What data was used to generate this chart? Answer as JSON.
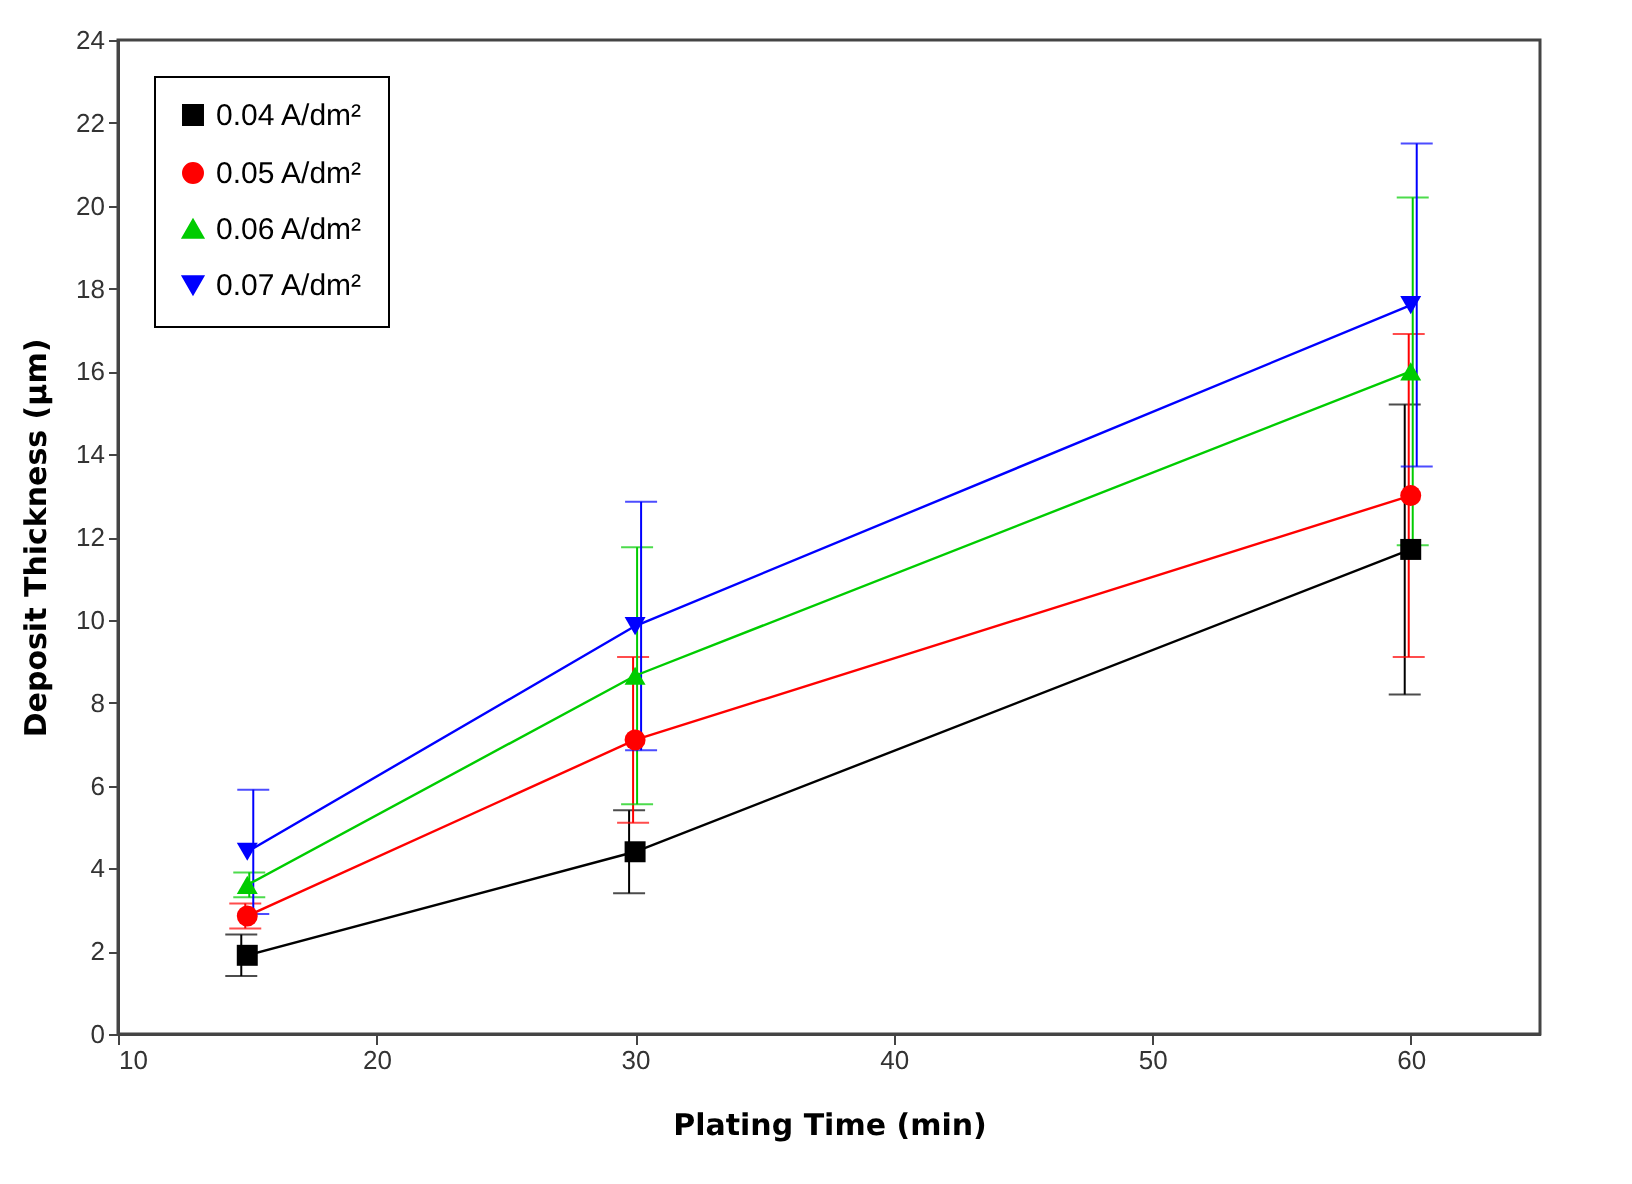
{
  "chart_data": {
    "type": "line",
    "xlabel": "Plating Time (min)",
    "ylabel": "Deposit Thickness (µm)",
    "x": [
      15,
      30,
      60
    ],
    "xlim": [
      10,
      65
    ],
    "xticks": [
      10,
      20,
      30,
      40,
      50,
      60
    ],
    "ylim": [
      0,
      24
    ],
    "yticks": [
      0,
      2,
      4,
      6,
      8,
      10,
      12,
      14,
      16,
      18,
      20,
      22,
      24
    ],
    "grid": false,
    "legend": "top left",
    "series": [
      {
        "name": "0.04 A/dm²",
        "color": "#000000",
        "marker": "square",
        "values": [
          1.9,
          4.4,
          11.7
        ],
        "errors": [
          0.5,
          1.0,
          3.5
        ]
      },
      {
        "name": "0.05 A/dm²",
        "color": "#ff0000",
        "marker": "circle",
        "values": [
          2.85,
          7.1,
          13.0
        ],
        "errors": [
          0.3,
          2.0,
          3.9
        ]
      },
      {
        "name": "0.06 A/dm²",
        "color": "#00cc00",
        "marker": "triangle",
        "values": [
          3.6,
          8.65,
          16.0
        ],
        "errors": [
          0.3,
          3.1,
          4.2
        ]
      },
      {
        "name": "0.07 A/dm²",
        "color": "#0000ff",
        "marker": "triangle-down",
        "values": [
          4.4,
          9.85,
          17.6
        ],
        "errors": [
          1.5,
          3.0,
          3.9
        ]
      }
    ]
  }
}
